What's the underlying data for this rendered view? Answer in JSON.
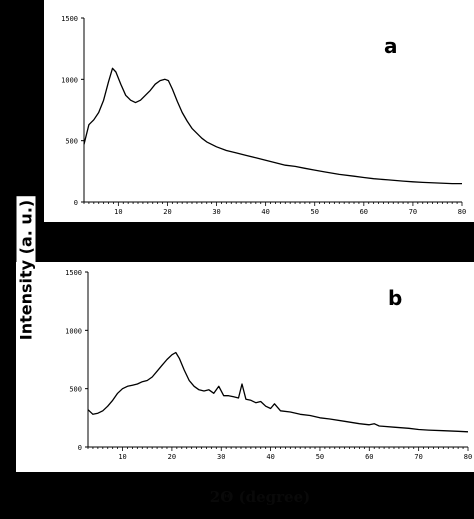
{
  "figure": {
    "y_title": "Intensity (a. u.)",
    "x_title": "2Θ (degree)"
  },
  "chart_data": [
    {
      "type": "line",
      "panel_label": "a",
      "xlim": [
        3,
        80
      ],
      "ylim": [
        0,
        1500
      ],
      "xticks": [
        10,
        20,
        30,
        40,
        50,
        60,
        70,
        80
      ],
      "yticks": [
        0,
        500,
        1000,
        1500
      ],
      "grid": false,
      "series": [
        {
          "x": [
            3,
            4,
            5,
            6,
            7,
            8,
            8.8,
            9.5,
            10.5,
            11.5,
            12.5,
            13.5,
            14.5,
            15.5,
            16.5,
            17.5,
            18.5,
            19.5,
            20.2,
            21,
            22,
            23,
            24,
            25,
            26,
            27,
            28,
            30,
            32,
            34,
            36,
            38,
            40,
            42,
            44,
            46,
            48,
            50,
            52,
            55,
            58,
            60,
            62,
            65,
            68,
            70,
            72,
            75,
            78,
            80
          ],
          "y": [
            470,
            630,
            670,
            730,
            830,
            980,
            1090,
            1060,
            960,
            870,
            830,
            810,
            830,
            870,
            910,
            960,
            990,
            1000,
            990,
            920,
            820,
            730,
            660,
            600,
            560,
            520,
            490,
            450,
            420,
            400,
            380,
            360,
            340,
            320,
            300,
            290,
            275,
            260,
            245,
            225,
            210,
            200,
            190,
            180,
            170,
            165,
            160,
            155,
            150,
            150
          ]
        }
      ]
    },
    {
      "type": "line",
      "panel_label": "b",
      "xlim": [
        3,
        80
      ],
      "ylim": [
        0,
        1500
      ],
      "xticks": [
        10,
        20,
        30,
        40,
        50,
        60,
        70,
        80
      ],
      "yticks": [
        0,
        500,
        1000,
        1500
      ],
      "grid": false,
      "series": [
        {
          "x": [
            3,
            4,
            5,
            6,
            7,
            8,
            9,
            10,
            11,
            12,
            13,
            14,
            15,
            16,
            17,
            18,
            19,
            20,
            20.8,
            21.5,
            22.5,
            23.5,
            24.5,
            25.5,
            26.5,
            27.5,
            28.5,
            29.5,
            30.5,
            31.5,
            32.5,
            33.5,
            34.2,
            35,
            36,
            37,
            38,
            39,
            40,
            40.8,
            42,
            44,
            46,
            48,
            50,
            52,
            55,
            58,
            60,
            61,
            62,
            65,
            68,
            70,
            72,
            75,
            78,
            80
          ],
          "y": [
            320,
            280,
            290,
            310,
            350,
            400,
            460,
            500,
            520,
            530,
            540,
            560,
            570,
            600,
            650,
            700,
            750,
            790,
            810,
            760,
            660,
            570,
            520,
            490,
            480,
            490,
            460,
            520,
            440,
            440,
            430,
            420,
            540,
            410,
            400,
            380,
            390,
            350,
            330,
            370,
            310,
            300,
            280,
            270,
            250,
            240,
            220,
            200,
            190,
            200,
            180,
            170,
            160,
            150,
            145,
            140,
            135,
            130
          ]
        }
      ]
    }
  ]
}
